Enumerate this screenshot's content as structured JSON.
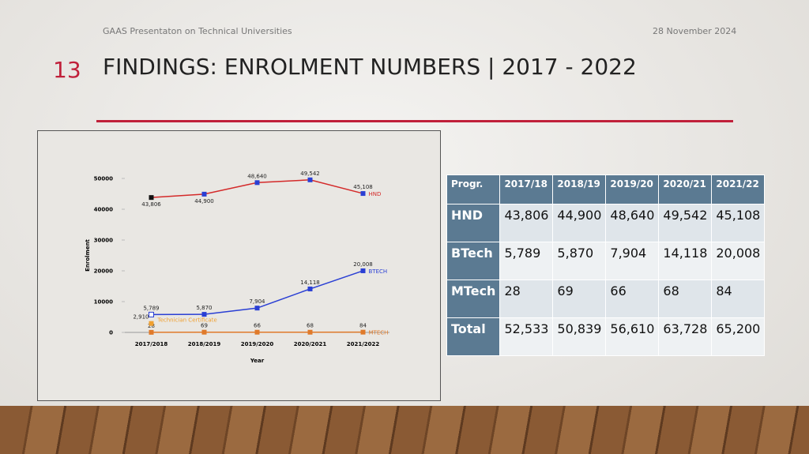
{
  "header": {
    "footer": "GAAS Presentaton on Technical Universities",
    "date": "28 November 2024",
    "slide_number": "13",
    "title": "FINDINGS: ENROLMENT NUMBERS | 2017 - 2022"
  },
  "chart_data": {
    "type": "line",
    "xlabel": "Year",
    "ylabel": "Enrolment",
    "categories": [
      "2017/2018",
      "2018/2019",
      "2019/2020",
      "2020/2021",
      "2021/2022"
    ],
    "ylim": [
      0,
      50000
    ],
    "yticks": [
      0,
      10000,
      20000,
      30000,
      40000,
      50000
    ],
    "series": [
      {
        "name": "HND",
        "color": "#d42a2a",
        "marker": "#2a3fd4",
        "values": [
          43806,
          44900,
          48640,
          49542,
          45108
        ],
        "value_labels": [
          "43,806",
          "44,900",
          "48,640",
          "49,542",
          "45,108"
        ]
      },
      {
        "name": "BTECH",
        "color": "#2a3fd4",
        "marker": "#2a3fd4",
        "values": [
          5789,
          5870,
          7904,
          14118,
          20008
        ],
        "value_labels": [
          "5,789",
          "5,870",
          "7,904",
          "14,118",
          "20,008"
        ]
      },
      {
        "name": "MTECH",
        "color": "#e07a2a",
        "marker": "#e07a2a",
        "values": [
          28,
          69,
          66,
          68,
          84
        ]
      },
      {
        "name": "Technician Certificate",
        "color": "#f0a030",
        "marker": "#f0a030",
        "values": [
          2910,
          null,
          null,
          null,
          null
        ],
        "value_labels": [
          "2,910",
          null,
          null,
          null,
          null
        ]
      }
    ]
  },
  "table": {
    "header": [
      "Progr.",
      "2017/18",
      "2018/19",
      "2019/20",
      "2020/21",
      "2021/22"
    ],
    "rows": [
      [
        "HND",
        "43,806",
        "44,900",
        "48,640",
        "49,542",
        "45,108"
      ],
      [
        "BTech",
        "5,789",
        "5,870",
        "7,904",
        "14,118",
        "20,008"
      ],
      [
        "MTech",
        "28",
        "69",
        "66",
        "68",
        "84"
      ],
      [
        "Total",
        "52,533",
        "50,839",
        "56,610",
        "63,728",
        "65,200"
      ]
    ]
  }
}
